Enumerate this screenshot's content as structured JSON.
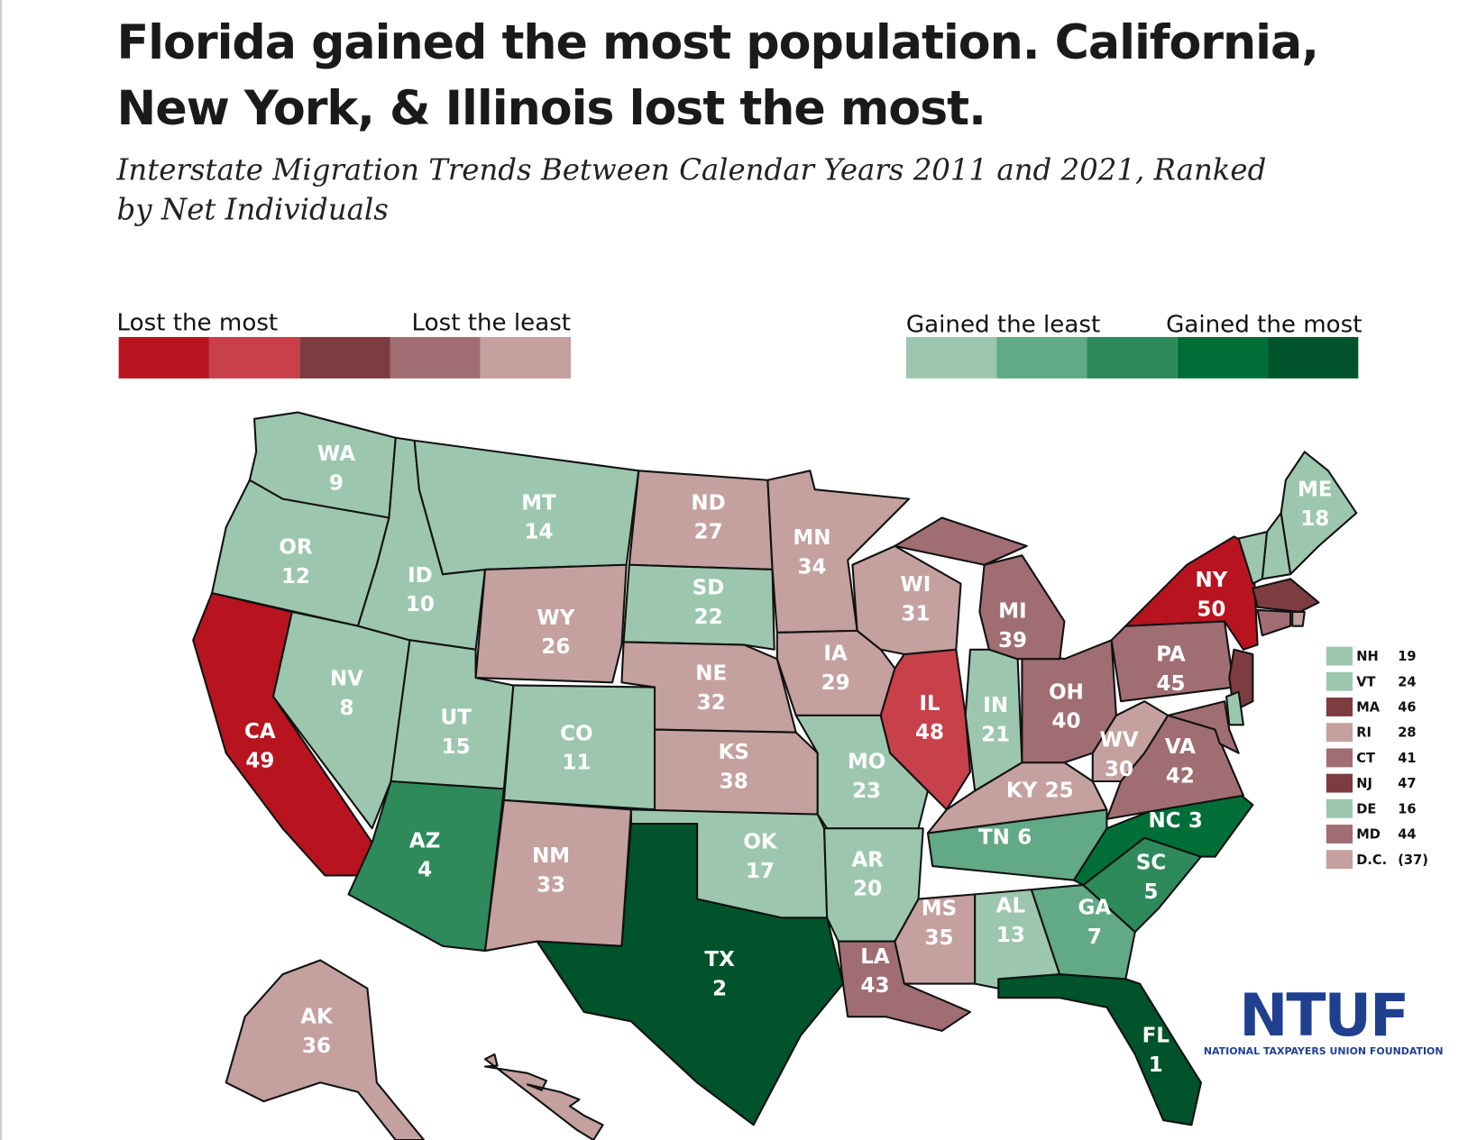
{
  "chart_data": {
    "type": "choropleth",
    "title": [
      "Florida gained the most population. California,",
      "New York, & Illinois lost the most."
    ],
    "subtitle": [
      "Interstate Migration Trends Between Calendar Years 2011 and 2021, Ranked",
      "by Net Individuals"
    ],
    "scale_lost": {
      "left_label": "Lost the most",
      "right_label": "Lost the least",
      "colors": [
        "#b8141f",
        "#c8404a",
        "#7d3c40",
        "#a06e72",
        "#c4a09f"
      ]
    },
    "scale_gained": {
      "left_label": "Gained the least",
      "right_label": "Gained the most",
      "colors": [
        "#9cc7ae",
        "#62a985",
        "#2e8a5b",
        "#006f37",
        "#00532a"
      ]
    },
    "states": [
      {
        "abbr": "WA",
        "rank": 9,
        "color": "#9cc7ae"
      },
      {
        "abbr": "OR",
        "rank": 12,
        "color": "#9cc7ae"
      },
      {
        "abbr": "CA",
        "rank": 49,
        "color": "#b8141f"
      },
      {
        "abbr": "NV",
        "rank": 8,
        "color": "#9cc7ae"
      },
      {
        "abbr": "ID",
        "rank": 10,
        "color": "#9cc7ae"
      },
      {
        "abbr": "MT",
        "rank": 14,
        "color": "#9cc7ae"
      },
      {
        "abbr": "WY",
        "rank": 26,
        "color": "#c4a09f"
      },
      {
        "abbr": "UT",
        "rank": 15,
        "color": "#9cc7ae"
      },
      {
        "abbr": "CO",
        "rank": 11,
        "color": "#9cc7ae"
      },
      {
        "abbr": "AZ",
        "rank": 4,
        "color": "#2e8a5b"
      },
      {
        "abbr": "NM",
        "rank": 33,
        "color": "#c4a09f"
      },
      {
        "abbr": "ND",
        "rank": 27,
        "color": "#c4a09f"
      },
      {
        "abbr": "SD",
        "rank": 22,
        "color": "#9cc7ae"
      },
      {
        "abbr": "NE",
        "rank": 32,
        "color": "#c4a09f"
      },
      {
        "abbr": "KS",
        "rank": 38,
        "color": "#c4a09f"
      },
      {
        "abbr": "OK",
        "rank": 17,
        "color": "#9cc7ae"
      },
      {
        "abbr": "TX",
        "rank": 2,
        "color": "#00532a"
      },
      {
        "abbr": "MN",
        "rank": 34,
        "color": "#c4a09f"
      },
      {
        "abbr": "IA",
        "rank": 29,
        "color": "#c4a09f"
      },
      {
        "abbr": "MO",
        "rank": 23,
        "color": "#9cc7ae"
      },
      {
        "abbr": "AR",
        "rank": 20,
        "color": "#9cc7ae"
      },
      {
        "abbr": "LA",
        "rank": 43,
        "color": "#a06e72"
      },
      {
        "abbr": "MS",
        "rank": 35,
        "color": "#c4a09f"
      },
      {
        "abbr": "AL",
        "rank": 13,
        "color": "#9cc7ae"
      },
      {
        "abbr": "GA",
        "rank": 7,
        "color": "#62a985"
      },
      {
        "abbr": "FL",
        "rank": 1,
        "color": "#00532a"
      },
      {
        "abbr": "SC",
        "rank": 5,
        "color": "#2e8a5b"
      },
      {
        "abbr": "NC",
        "rank": 3,
        "color": "#006f37"
      },
      {
        "abbr": "TN",
        "rank": 6,
        "color": "#62a985"
      },
      {
        "abbr": "KY",
        "rank": 25,
        "color": "#c4a09f"
      },
      {
        "abbr": "IL",
        "rank": 48,
        "color": "#c8404a"
      },
      {
        "abbr": "IN",
        "rank": 21,
        "color": "#9cc7ae"
      },
      {
        "abbr": "OH",
        "rank": 40,
        "color": "#a06e72"
      },
      {
        "abbr": "WI",
        "rank": 31,
        "color": "#c4a09f"
      },
      {
        "abbr": "MI",
        "rank": 39,
        "color": "#a06e72"
      },
      {
        "abbr": "WV",
        "rank": 30,
        "color": "#c4a09f"
      },
      {
        "abbr": "VA",
        "rank": 42,
        "color": "#a06e72"
      },
      {
        "abbr": "PA",
        "rank": 45,
        "color": "#a06e72"
      },
      {
        "abbr": "NY",
        "rank": 50,
        "color": "#b8141f"
      },
      {
        "abbr": "ME",
        "rank": 18,
        "color": "#9cc7ae"
      },
      {
        "abbr": "AK",
        "rank": 36,
        "color": "#c4a09f"
      },
      {
        "abbr": "HI",
        "color": "#c4a09f"
      }
    ],
    "small_states": [
      {
        "abbr": "NH",
        "rank": 19,
        "color": "#9cc7ae"
      },
      {
        "abbr": "VT",
        "rank": 24,
        "color": "#9cc7ae"
      },
      {
        "abbr": "MA",
        "rank": 46,
        "color": "#7d3c40"
      },
      {
        "abbr": "RI",
        "rank": 28,
        "color": "#c4a09f"
      },
      {
        "abbr": "CT",
        "rank": 41,
        "color": "#a06e72"
      },
      {
        "abbr": "NJ",
        "rank": 47,
        "color": "#7d3c40"
      },
      {
        "abbr": "DE",
        "rank": 16,
        "color": "#9cc7ae"
      },
      {
        "abbr": "MD",
        "rank": 44,
        "color": "#a06e72"
      },
      {
        "abbr": "D.C.",
        "rank": 37,
        "value_label": "(37)",
        "color": "#c4a09f"
      }
    ],
    "logo": {
      "mark": "NTUF",
      "name": "NATIONAL TAXPAYERS UNION FOUNDATION"
    }
  }
}
